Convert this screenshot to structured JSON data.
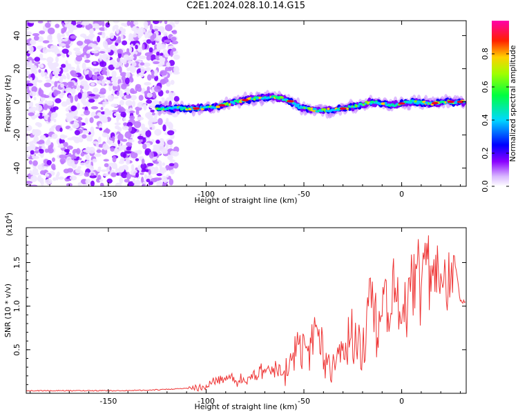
{
  "title": "C2E1.2024.028.10.14.G15",
  "colors": {
    "snr_line": "#ee3333",
    "colormap": [
      "#f0e6ff",
      "#c07bff",
      "#7d00ff",
      "#0000ff",
      "#00c8ff",
      "#00ff80",
      "#7dff00",
      "#ffd000",
      "#ff5000",
      "#e8002a",
      "#ff00aa"
    ]
  },
  "chart_data": [
    {
      "type": "heatmap",
      "title": "C2E1.2024.028.10.14.G15",
      "xlabel": "Height of straight line (km)",
      "ylabel": "Frequency (Hz)",
      "xlim": [
        -192,
        33
      ],
      "ylim": [
        -51,
        49
      ],
      "x_ticks": [
        -150,
        -100,
        -50,
        0
      ],
      "y_ticks": [
        -40,
        -20,
        0,
        20,
        40
      ],
      "colorbar": {
        "label": "Normalized spectral amplitude",
        "range": [
          0.0,
          1.0
        ],
        "ticks": [
          "0.0",
          "0.2",
          "0.4",
          "0.6",
          "0.8"
        ]
      },
      "noise_region_x": [
        -192,
        -115
      ],
      "signal_trace": [
        {
          "x": -125,
          "y": -4
        },
        {
          "x": -115,
          "y": -4
        },
        {
          "x": -105,
          "y": -4
        },
        {
          "x": -95,
          "y": -3
        },
        {
          "x": -85,
          "y": 0
        },
        {
          "x": -75,
          "y": 2
        },
        {
          "x": -65,
          "y": 3
        },
        {
          "x": -58,
          "y": 1
        },
        {
          "x": -52,
          "y": -3
        },
        {
          "x": -45,
          "y": -5
        },
        {
          "x": -35,
          "y": -5
        },
        {
          "x": -25,
          "y": -3
        },
        {
          "x": -15,
          "y": 0
        },
        {
          "x": -5,
          "y": -2
        },
        {
          "x": 5,
          "y": 0
        },
        {
          "x": 15,
          "y": -1
        },
        {
          "x": 25,
          "y": 0
        },
        {
          "x": 32,
          "y": 0
        }
      ]
    },
    {
      "type": "line",
      "xlabel": "Height of straight line (km)",
      "ylabel": "SNR (10 * v/v)",
      "scale_label": "(x10^4)",
      "scale_base": "(x10",
      "scale_exp": "4",
      "scale_close": ")",
      "xlim": [
        -192,
        33
      ],
      "ylim": [
        0,
        1.9
      ],
      "x_ticks": [
        -150,
        -100,
        -50,
        0
      ],
      "y_ticks": [
        0.5,
        1.0,
        1.5
      ],
      "series": [
        {
          "x": [
            -192,
            -175,
            -160,
            -150,
            -140,
            -125,
            -115,
            -105,
            -100,
            -95,
            -90,
            -85,
            -80,
            -75,
            -70,
            -65,
            -60,
            -55,
            -52,
            -50,
            -48,
            -45,
            -40,
            -35,
            -30,
            -25,
            -20,
            -17,
            -15,
            -12,
            -10,
            -7,
            -5,
            -2,
            0,
            3,
            5,
            8,
            10,
            12,
            15,
            17,
            20,
            22,
            25,
            27,
            30,
            33
          ],
          "y": [
            0.03,
            0.03,
            0.03,
            0.03,
            0.03,
            0.04,
            0.05,
            0.07,
            0.1,
            0.15,
            0.2,
            0.17,
            0.19,
            0.23,
            0.3,
            0.33,
            0.28,
            0.5,
            0.55,
            0.7,
            0.6,
            0.95,
            0.5,
            0.4,
            0.55,
            0.85,
            0.45,
            1.3,
            1.45,
            0.7,
            1.5,
            1.15,
            1.4,
            1.3,
            1.05,
            1.5,
            1.3,
            1.6,
            1.45,
            1.85,
            1.3,
            1.55,
            1.6,
            1.55,
            1.6,
            1.55,
            1.05,
            1.05
          ]
        }
      ]
    }
  ]
}
